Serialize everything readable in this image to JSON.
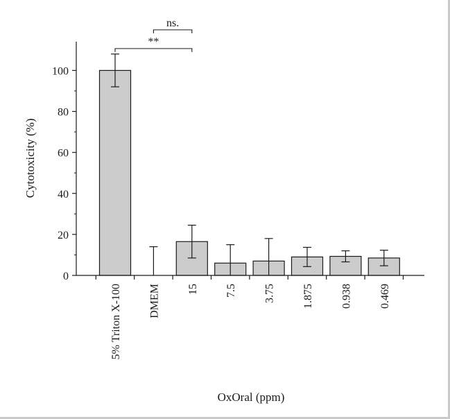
{
  "chart_data": {
    "type": "bar",
    "title": "",
    "xlabel": "OxOral (ppm)",
    "ylabel": "Cytotoxicity (%)",
    "ylim": [
      0,
      110
    ],
    "yticks": [
      0,
      20,
      40,
      60,
      80,
      100
    ],
    "ytick_labels": [
      "0",
      "20",
      "40",
      "60",
      "80",
      "100"
    ],
    "categories": [
      "5% Triton X-100",
      "DMEM",
      "15",
      "7.5",
      "3.75",
      "1.875",
      "0.938",
      "0.469"
    ],
    "values": [
      100,
      0,
      16.5,
      6,
      7,
      9,
      9.3,
      8.5
    ],
    "errors": [
      8,
      14,
      8,
      9,
      11,
      4.7,
      2.7,
      3.8
    ],
    "bar_color": "#cccccc",
    "edge_color": "#1a1a1a",
    "grid": false,
    "annotations": [
      {
        "label": "**",
        "from": "5% Triton X-100",
        "to": "15"
      },
      {
        "label": "ns.",
        "from": "DMEM",
        "to": "15"
      }
    ]
  }
}
